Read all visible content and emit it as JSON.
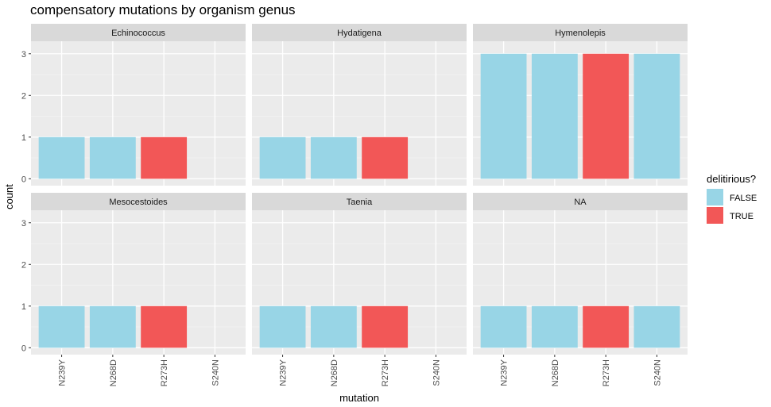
{
  "chart_data": {
    "type": "bar",
    "title": "compensatory mutations by organism genus",
    "xlabel": "mutation",
    "ylabel": "count",
    "ylim": [
      0,
      3.3
    ],
    "yticks": [
      0,
      1,
      2,
      3
    ],
    "categories": [
      "N239Y",
      "N268D",
      "R273H",
      "S240N"
    ],
    "legend": {
      "title": "delitirious?",
      "placement": "right",
      "entries": [
        {
          "label": "FALSE",
          "color": "#98D5E6"
        },
        {
          "label": "TRUE",
          "color": "#F25757"
        }
      ]
    },
    "grid": true,
    "panels": [
      {
        "name": "Echinococcus",
        "values": [
          1,
          1,
          1,
          null
        ],
        "delitirious": [
          false,
          false,
          true,
          null
        ]
      },
      {
        "name": "Hydatigena",
        "values": [
          1,
          1,
          1,
          null
        ],
        "delitirious": [
          false,
          false,
          true,
          null
        ]
      },
      {
        "name": "Hymenolepis",
        "values": [
          3,
          3,
          3,
          3
        ],
        "delitirious": [
          false,
          false,
          true,
          false
        ]
      },
      {
        "name": "Mesocestoides",
        "values": [
          1,
          1,
          1,
          null
        ],
        "delitirious": [
          false,
          false,
          true,
          null
        ]
      },
      {
        "name": "Taenia",
        "values": [
          1,
          1,
          1,
          null
        ],
        "delitirious": [
          false,
          false,
          true,
          null
        ]
      },
      {
        "name": "NA",
        "values": [
          1,
          1,
          1,
          1
        ],
        "delitirious": [
          false,
          false,
          true,
          false
        ]
      }
    ]
  }
}
